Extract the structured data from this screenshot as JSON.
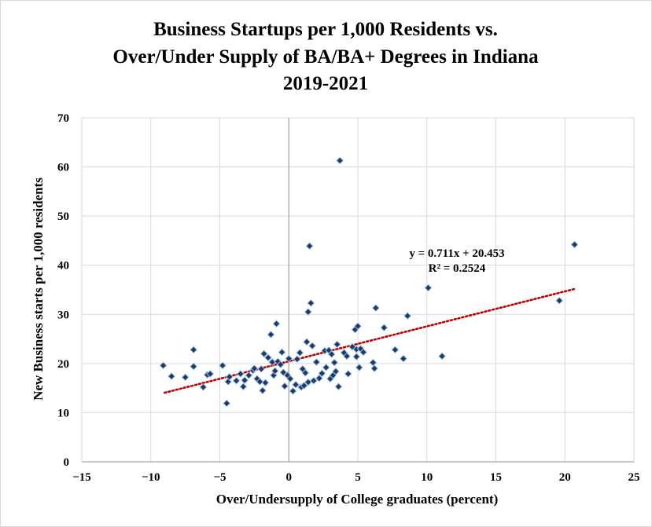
{
  "chart_data": {
    "type": "scatter",
    "title_lines": [
      "Business Startups per 1,000 Residents vs.",
      "Over/Under Supply of BA/BA+ Degrees in Indiana",
      "2019-2021"
    ],
    "xlabel": "Over/Undersupply  of College graduates (percent)",
    "ylabel": "New Business starts per 1,000 residents",
    "xlim": [
      -15,
      25
    ],
    "ylim": [
      0,
      70
    ],
    "xticks": [
      -15,
      -10,
      -5,
      0,
      5,
      10,
      15,
      20,
      25
    ],
    "yticks": [
      0,
      10,
      20,
      30,
      40,
      50,
      60,
      70
    ],
    "grid": "vertical and horizontal",
    "colors": {
      "marker_fill": "#1f3864",
      "marker_stroke": "#9dc3e6",
      "trendline": "#c00000",
      "gridline": "#d9d9d9",
      "zero_axis": "#a6a6a6"
    },
    "trendline": {
      "slope": 0.711,
      "intercept": 20.453,
      "x_range": [
        -9,
        20.8
      ],
      "equation_label": "y = 0.711x + 20.453",
      "r2_label": "R² = 0.2524"
    },
    "series": [
      {
        "name": "Indiana counties",
        "points": [
          [
            -9.1,
            19.6
          ],
          [
            -8.5,
            17.4
          ],
          [
            -7.5,
            17.2
          ],
          [
            -6.9,
            22.8
          ],
          [
            -6.9,
            19.4
          ],
          [
            -6.2,
            15.2
          ],
          [
            -5.9,
            17.7
          ],
          [
            -5.7,
            17.9
          ],
          [
            -4.8,
            19.6
          ],
          [
            -4.5,
            11.9
          ],
          [
            -4.4,
            16.3
          ],
          [
            -4.3,
            17.3
          ],
          [
            -3.8,
            16.5
          ],
          [
            -3.5,
            17.9
          ],
          [
            -3.3,
            15.3
          ],
          [
            -3.2,
            16.6
          ],
          [
            -2.9,
            17.6
          ],
          [
            -2.6,
            18.6
          ],
          [
            -2.5,
            19.0
          ],
          [
            -2.3,
            16.9
          ],
          [
            -2.1,
            16.3
          ],
          [
            -2.0,
            18.9
          ],
          [
            -1.9,
            14.5
          ],
          [
            -1.8,
            22.0
          ],
          [
            -1.7,
            16.1
          ],
          [
            -1.5,
            21.2
          ],
          [
            -1.3,
            25.9
          ],
          [
            -1.2,
            20.3
          ],
          [
            -1.1,
            17.6
          ],
          [
            -1.0,
            18.5
          ],
          [
            -0.9,
            28.1
          ],
          [
            -0.8,
            20.4
          ],
          [
            -0.6,
            19.8
          ],
          [
            -0.5,
            22.3
          ],
          [
            -0.4,
            18.2
          ],
          [
            -0.3,
            15.4
          ],
          [
            -0.1,
            17.6
          ],
          [
            0.0,
            21.0
          ],
          [
            0.1,
            16.9
          ],
          [
            0.3,
            14.4
          ],
          [
            0.5,
            15.7
          ],
          [
            0.6,
            20.9
          ],
          [
            0.8,
            22.2
          ],
          [
            0.9,
            15.2
          ],
          [
            1.0,
            18.9
          ],
          [
            1.1,
            15.5
          ],
          [
            1.2,
            18.1
          ],
          [
            1.3,
            24.4
          ],
          [
            1.4,
            16.2
          ],
          [
            1.4,
            30.5
          ],
          [
            1.5,
            43.9
          ],
          [
            1.6,
            32.3
          ],
          [
            1.7,
            23.6
          ],
          [
            1.8,
            16.5
          ],
          [
            2.0,
            20.3
          ],
          [
            2.2,
            17.0
          ],
          [
            2.4,
            18.0
          ],
          [
            2.6,
            22.6
          ],
          [
            2.7,
            19.2
          ],
          [
            2.9,
            22.7
          ],
          [
            3.0,
            16.9
          ],
          [
            3.1,
            21.9
          ],
          [
            3.2,
            17.6
          ],
          [
            3.3,
            20.2
          ],
          [
            3.4,
            18.4
          ],
          [
            3.5,
            23.9
          ],
          [
            3.6,
            15.3
          ],
          [
            3.7,
            61.3
          ],
          [
            4.0,
            22.2
          ],
          [
            4.2,
            21.5
          ],
          [
            4.3,
            17.9
          ],
          [
            4.6,
            23.4
          ],
          [
            4.8,
            26.9
          ],
          [
            4.9,
            21.4
          ],
          [
            4.9,
            22.9
          ],
          [
            5.0,
            27.6
          ],
          [
            5.1,
            19.2
          ],
          [
            5.2,
            23.0
          ],
          [
            5.4,
            22.3
          ],
          [
            6.1,
            20.2
          ],
          [
            6.2,
            19.0
          ],
          [
            6.3,
            31.3
          ],
          [
            6.9,
            27.3
          ],
          [
            7.7,
            22.8
          ],
          [
            8.3,
            21.0
          ],
          [
            8.6,
            29.7
          ],
          [
            10.1,
            35.4
          ],
          [
            11.1,
            21.5
          ],
          [
            19.6,
            32.8
          ],
          [
            20.7,
            44.2
          ]
        ]
      }
    ]
  }
}
